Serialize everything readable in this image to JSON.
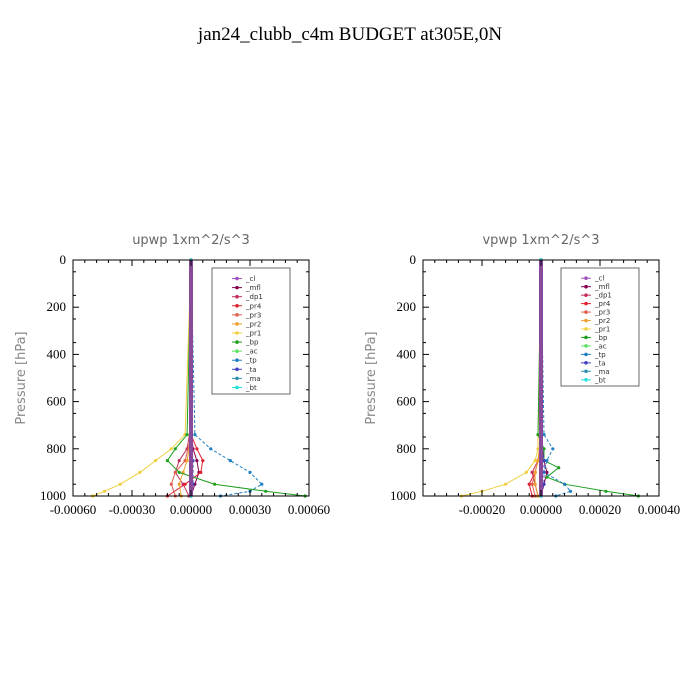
{
  "title": "jan24_clubb_c4m  BUDGET at305E,0N",
  "chart_data": [
    {
      "type": "line",
      "title": "upwp   1xm^2/s^3",
      "ylabel": "Pressure [hPa]",
      "xlim": [
        -0.0006,
        0.0006
      ],
      "ylim": [
        1000,
        0
      ],
      "xticks": [
        -0.0006,
        -0.0003,
        0.0,
        0.0003,
        0.0006
      ],
      "xtick_labels": [
        "-0.00060",
        "-0.00030",
        "0.00000",
        "0.00030",
        "0.00060"
      ],
      "yticks": [
        0,
        200,
        400,
        600,
        800,
        1000
      ],
      "ytick_labels": [
        "0",
        "200",
        "400",
        "600",
        "800",
        "1000"
      ],
      "legend_position": "top-right",
      "series": [
        {
          "name": "_cl",
          "color": "#a050c0",
          "y": [
            0,
            700,
            800,
            900,
            950,
            1000
          ],
          "x": [
            0,
            0,
            0,
            0,
            0,
            0
          ]
        },
        {
          "name": "_mfl",
          "color": "#880050",
          "y": [
            0,
            700,
            800,
            850,
            900,
            950,
            1000
          ],
          "x": [
            0,
            0,
            1e-05,
            3e-05,
            4e-05,
            2e-05,
            0
          ]
        },
        {
          "name": "_dp1",
          "color": "#c0305a",
          "y": [
            0,
            700,
            800,
            850,
            900,
            950,
            1000
          ],
          "x": [
            0,
            0,
            -2e-05,
            -6e-05,
            -8e-05,
            -4e-05,
            -1e-05
          ]
        },
        {
          "name": "_pr4",
          "color": "#e02030",
          "y": [
            0,
            740,
            800,
            850,
            900,
            950,
            1000
          ],
          "x": [
            0,
            0,
            3e-05,
            6e-05,
            5e-05,
            -3e-05,
            -0.00012
          ]
        },
        {
          "name": "_pr3",
          "color": "#e06050",
          "y": [
            0,
            750,
            850,
            900,
            950,
            1000
          ],
          "x": [
            0,
            0,
            -3e-05,
            -8e-05,
            -0.0001,
            -8e-05
          ]
        },
        {
          "name": "_pr2",
          "color": "#f0a030",
          "y": [
            0,
            750,
            850,
            900,
            950,
            1000
          ],
          "x": [
            0,
            0,
            -2e-05,
            -4e-05,
            -6e-05,
            -5e-05
          ]
        },
        {
          "name": "_pr1",
          "color": "#f0d040",
          "y": [
            0,
            740,
            800,
            850,
            900,
            950,
            980,
            1000
          ],
          "x": [
            0,
            -3e-05,
            -0.0001,
            -0.00018,
            -0.00026,
            -0.00036,
            -0.00044,
            -0.0005
          ]
        },
        {
          "name": "_bp",
          "color": "#20a020",
          "y": [
            0,
            740,
            800,
            850,
            900,
            950,
            980,
            1000
          ],
          "x": [
            0,
            -2e-05,
            -8e-05,
            -0.00012,
            -6e-05,
            0.00012,
            0.00038,
            0.00058
          ]
        },
        {
          "name": "_ac",
          "color": "#60e060",
          "y": [
            0,
            800,
            900,
            1000
          ],
          "x": [
            0,
            0,
            0,
            0
          ]
        },
        {
          "name": "_tp",
          "color": "#2080c0",
          "y": [
            0,
            740,
            800,
            850,
            900,
            950,
            980,
            1000
          ],
          "x": [
            0,
            2e-05,
            0.0001,
            0.0002,
            0.0003,
            0.00036,
            0.0003,
            0.00015
          ]
        },
        {
          "name": "_ta",
          "color": "#4040c0",
          "y": [
            0,
            750,
            850,
            950,
            1000
          ],
          "x": [
            0,
            0,
            1e-05,
            1e-05,
            0
          ]
        },
        {
          "name": "_ma",
          "color": "#3090b0",
          "y": [
            0,
            1000
          ],
          "x": [
            0,
            0
          ]
        },
        {
          "name": "_bt",
          "color": "#20e0e0",
          "y": [
            0,
            1000
          ],
          "x": [
            0,
            0
          ]
        }
      ]
    },
    {
      "type": "line",
      "title": "vpwp   1xm^2/s^3",
      "ylabel": "Pressure [hPa]",
      "xlim": [
        -0.0004,
        0.0004
      ],
      "ylim": [
        1000,
        0
      ],
      "xticks": [
        -0.0004,
        -0.0002,
        0.0,
        0.0002,
        0.0004
      ],
      "xtick_labels": [
        "",
        "-0.00020",
        "0.00000",
        "0.00020",
        "0.00040"
      ],
      "yticks": [
        0,
        200,
        400,
        600,
        800,
        1000
      ],
      "ytick_labels": [
        "0",
        "200",
        "400",
        "600",
        "800",
        "1000"
      ],
      "legend_position": "top-right",
      "series": [
        {
          "name": "_cl",
          "color": "#a050c0",
          "y": [
            0,
            700,
            800,
            900,
            950,
            1000
          ],
          "x": [
            0,
            0,
            0,
            0,
            0,
            0
          ]
        },
        {
          "name": "_mfl",
          "color": "#880050",
          "y": [
            0,
            750,
            850,
            900,
            950,
            1000
          ],
          "x": [
            0,
            0,
            1e-05,
            2e-05,
            1e-05,
            0
          ]
        },
        {
          "name": "_dp1",
          "color": "#c0305a",
          "y": [
            0,
            750,
            850,
            900,
            950,
            1000
          ],
          "x": [
            0,
            0,
            -1e-05,
            -3e-05,
            -2e-05,
            -1e-05
          ]
        },
        {
          "name": "_pr4",
          "color": "#e02030",
          "y": [
            0,
            750,
            850,
            900,
            950,
            1000
          ],
          "x": [
            0,
            0,
            -1e-05,
            -2e-05,
            -4e-05,
            -3e-05
          ]
        },
        {
          "name": "_pr3",
          "color": "#e06050",
          "y": [
            0,
            750,
            850,
            900,
            950,
            1000
          ],
          "x": [
            0,
            0,
            -1e-05,
            -2e-05,
            -3e-05,
            -2e-05
          ]
        },
        {
          "name": "_pr2",
          "color": "#f0a030",
          "y": [
            0,
            750,
            850,
            900,
            950,
            1000
          ],
          "x": [
            0,
            0,
            -1e-05,
            -2e-05,
            -2e-05,
            -1e-05
          ]
        },
        {
          "name": "_pr1",
          "color": "#f0d040",
          "y": [
            0,
            740,
            800,
            850,
            900,
            950,
            980,
            1000
          ],
          "x": [
            0,
            -1e-05,
            -1e-05,
            -2e-05,
            -5e-05,
            -0.00012,
            -0.0002,
            -0.00027
          ]
        },
        {
          "name": "_bp",
          "color": "#20a020",
          "y": [
            0,
            740,
            800,
            850,
            880,
            920,
            950,
            980,
            1000
          ],
          "x": [
            0,
            -1e-05,
            1e-05,
            1e-05,
            6e-05,
            2e-05,
            8e-05,
            0.00022,
            0.00033
          ]
        },
        {
          "name": "_ac",
          "color": "#60e060",
          "y": [
            0,
            800,
            900,
            1000
          ],
          "x": [
            0,
            0,
            0,
            0
          ]
        },
        {
          "name": "_tp",
          "color": "#2080c0",
          "y": [
            0,
            740,
            800,
            850,
            900,
            950,
            980,
            1000
          ],
          "x": [
            0,
            1e-05,
            4e-05,
            2e-05,
            1e-05,
            8e-05,
            0.0001,
            5e-05
          ]
        },
        {
          "name": "_ta",
          "color": "#4040c0",
          "y": [
            0,
            750,
            850,
            950,
            1000
          ],
          "x": [
            0,
            0,
            1e-05,
            1e-05,
            0
          ]
        },
        {
          "name": "_ma",
          "color": "#3090b0",
          "y": [
            0,
            1000
          ],
          "x": [
            0,
            0
          ]
        },
        {
          "name": "_bt",
          "color": "#20e0e0",
          "y": [
            0,
            1000
          ],
          "x": [
            0,
            0
          ]
        }
      ]
    }
  ]
}
